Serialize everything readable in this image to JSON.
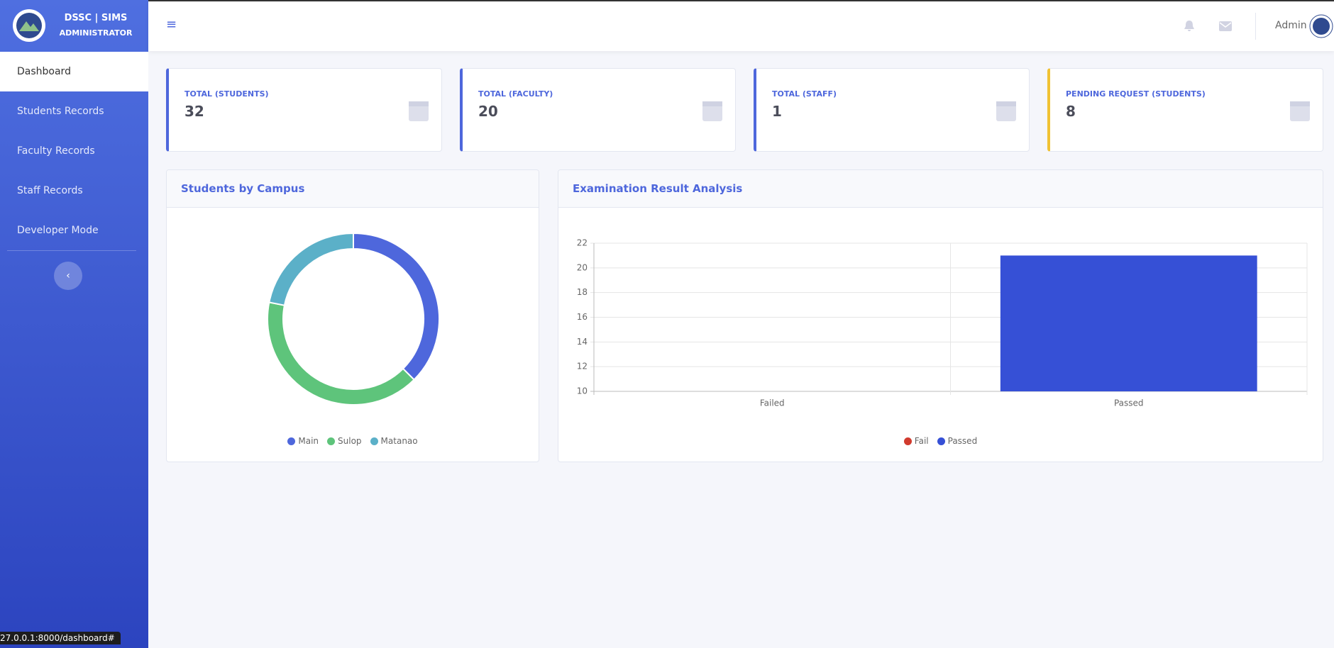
{
  "sidebar": {
    "brand": {
      "title": "DSSC | SIMS",
      "subtitle": "ADMINISTRATOR"
    },
    "menu": [
      "Dashboard",
      "Students Records",
      "Faculty Records",
      "Staff Records",
      "Developer Mode"
    ]
  },
  "topbar": {
    "user": "Admin"
  },
  "cards": [
    {
      "label": "TOTAL (STUDENTS)",
      "value": 32,
      "accent": "#4e67dc"
    },
    {
      "label": "TOTAL (FACULTY)",
      "value": 20,
      "accent": "#4e67dc"
    },
    {
      "label": "TOTAL (STAFF)",
      "value": 1,
      "accent": "#4e67dc"
    },
    {
      "label": "PENDING REQUEST (STUDENTS)",
      "value": 8,
      "accent": "#f0c233"
    }
  ],
  "chart_data": [
    {
      "type": "doughnut",
      "title": "Students by Campus",
      "categories": [
        "Main",
        "Sulop",
        "Matanao"
      ],
      "values": [
        12,
        13,
        7
      ],
      "colors": [
        "#4e67dc",
        "#5ec47b",
        "#5bb0c8"
      ]
    },
    {
      "type": "bar",
      "title": "Examination Result Analysis",
      "categories": [
        "Failed",
        "Passed"
      ],
      "values": [
        null,
        21
      ],
      "ylim": [
        10,
        22
      ],
      "yticks": [
        10,
        12,
        14,
        16,
        18,
        20,
        22
      ],
      "grid": true,
      "legend": [
        {
          "name": "Fail",
          "color": "#d13b2e"
        },
        {
          "name": "Passed",
          "color": "#3650d6"
        }
      ]
    }
  ],
  "status_bar": "27.0.0.1:8000/dashboard#"
}
